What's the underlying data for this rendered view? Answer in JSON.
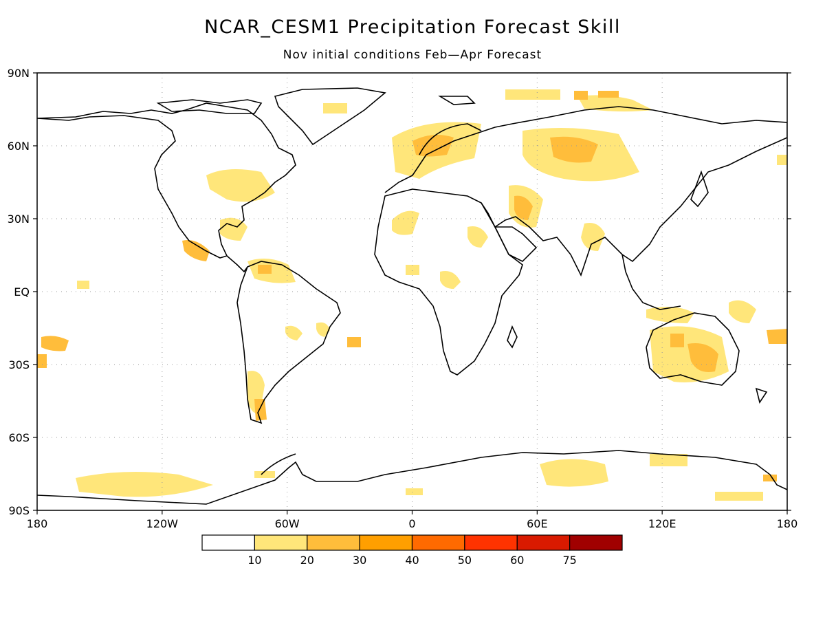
{
  "title": "NCAR_CESM1 Precipitation Forecast Skill",
  "subtitle": "Nov initial conditions  Feb—Apr Forecast",
  "map": {
    "lat_labels": [
      "90N",
      "60N",
      "30N",
      "EQ",
      "30S",
      "60S",
      "90S"
    ],
    "lat_values": [
      90,
      60,
      30,
      0,
      -30,
      -60,
      -90
    ],
    "lon_labels": [
      "180",
      "120W",
      "60W",
      "0",
      "60E",
      "120E",
      "180"
    ],
    "lon_values": [
      -180,
      -120,
      -60,
      0,
      60,
      120,
      180
    ],
    "gridlines": "dotted",
    "colors": {
      "land_outline": "#000000",
      "grid": "#9a9a9a",
      "frame": "#000000"
    }
  },
  "colorbar": {
    "labels": [
      "10",
      "20",
      "30",
      "40",
      "50",
      "60",
      "75"
    ],
    "colors": [
      "#ffffff",
      "#ffe67a",
      "#ffbd3b",
      "#ff9f00",
      "#ff6a00",
      "#ff3300",
      "#d91a00",
      "#a00000"
    ]
  }
}
